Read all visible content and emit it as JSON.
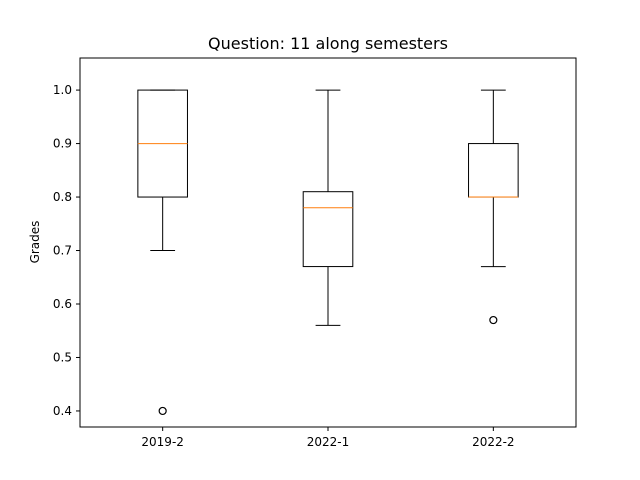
{
  "chart_data": {
    "type": "box",
    "title": "Question: 11 along semesters",
    "xlabel": "",
    "ylabel": "Grades",
    "ylim": [
      0.37,
      1.06
    ],
    "yticks": [
      "0.4",
      "0.5",
      "0.6",
      "0.7",
      "0.8",
      "0.9",
      "1.0"
    ],
    "grid": false,
    "categories": [
      "2019-2",
      "2022-1",
      "2022-2"
    ],
    "boxes": [
      {
        "label": "2019-2",
        "whisker_low": 0.7,
        "q1": 0.8,
        "median": 0.9,
        "q3": 1.0,
        "whisker_high": 1.0,
        "outliers": [
          0.4
        ]
      },
      {
        "label": "2022-1",
        "whisker_low": 0.56,
        "q1": 0.67,
        "median": 0.78,
        "q3": 0.81,
        "whisker_high": 1.0,
        "outliers": []
      },
      {
        "label": "2022-2",
        "whisker_low": 0.67,
        "q1": 0.8,
        "median": 0.8,
        "q3": 0.9,
        "whisker_high": 1.0,
        "outliers": [
          0.57
        ]
      }
    ],
    "colors": {
      "box": "#000000",
      "median": "#ff7f0e",
      "outlier": "#000000"
    }
  }
}
